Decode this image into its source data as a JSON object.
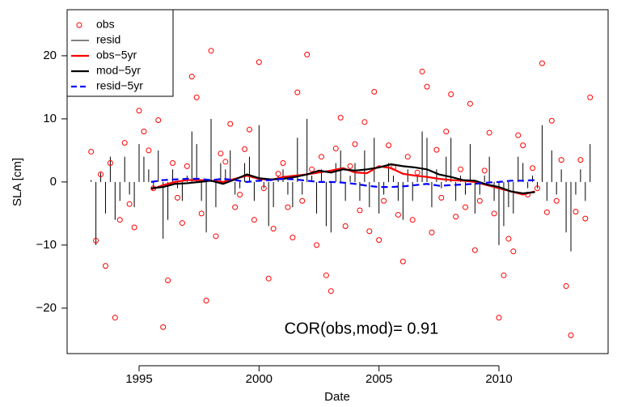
{
  "chart_data": {
    "type": "scatter",
    "xlabel": "Date",
    "ylabel": "SLA [cm]",
    "annotation": "COR(obs,mod)= 0.91",
    "xlim": [
      1992.0,
      2014.55
    ],
    "ylim": [
      -27.2,
      27.3
    ],
    "xticks": [
      1995,
      2000,
      2005,
      2010
    ],
    "yticks": [
      {
        "value": -20,
        "label": "−20"
      },
      {
        "value": -10,
        "label": "−10"
      },
      0,
      10,
      20
    ],
    "legend": "top-left",
    "series": [
      {
        "name": "obs",
        "kind": "points",
        "color": "#ff0000",
        "x": [
          1993.0,
          1993.2,
          1993.4,
          1993.6,
          1993.8,
          1994.0,
          1994.2,
          1994.4,
          1994.6,
          1994.8,
          1995.0,
          1995.2,
          1995.4,
          1995.6,
          1995.8,
          1996.0,
          1996.2,
          1996.4,
          1996.6,
          1996.8,
          1997.0,
          1997.2,
          1997.4,
          1997.6,
          1997.8,
          1998.0,
          1998.2,
          1998.4,
          1998.6,
          1998.8,
          1999.0,
          1999.2,
          1999.4,
          1999.6,
          1999.8,
          2000.0,
          2000.2,
          2000.4,
          2000.6,
          2000.8,
          2001.0,
          2001.2,
          2001.4,
          2001.6,
          2001.8,
          2002.0,
          2002.2,
          2002.4,
          2002.6,
          2002.8,
          2003.0,
          2003.2,
          2003.4,
          2003.6,
          2003.8,
          2004.0,
          2004.2,
          2004.4,
          2004.6,
          2004.8,
          2005.0,
          2005.2,
          2005.4,
          2005.6,
          2005.8,
          2006.0,
          2006.2,
          2006.4,
          2006.6,
          2006.8,
          2007.0,
          2007.2,
          2007.4,
          2007.6,
          2007.8,
          2008.0,
          2008.2,
          2008.4,
          2008.6,
          2008.8,
          2009.0,
          2009.2,
          2009.4,
          2009.6,
          2009.8,
          2010.0,
          2010.2,
          2010.4,
          2010.6,
          2010.8,
          2011.0,
          2011.2,
          2011.4,
          2011.6,
          2011.8,
          2012.0,
          2012.2,
          2012.4,
          2012.6,
          2012.8,
          2013.0,
          2013.2,
          2013.4,
          2013.6,
          2013.8
        ],
        "values": [
          4.8,
          -9.3,
          1.2,
          -13.3,
          3.0,
          -21.5,
          -6.0,
          6.2,
          -3.5,
          -7.2,
          11.3,
          8.0,
          5.0,
          -1.0,
          9.8,
          -23.0,
          -15.6,
          3.0,
          -2.5,
          -6.5,
          2.5,
          16.7,
          13.4,
          -5.0,
          -18.8,
          20.8,
          -8.6,
          4.5,
          3.2,
          9.2,
          -4.0,
          -2.0,
          5.2,
          8.3,
          -6.0,
          19.0,
          -1.0,
          -15.3,
          -7.4,
          1.3,
          3.0,
          -4.0,
          -8.8,
          14.2,
          -3.0,
          20.2,
          2.0,
          -10.0,
          4.0,
          -14.8,
          -17.3,
          5.3,
          10.2,
          -7.0,
          2.5,
          6.0,
          -4.5,
          9.5,
          -7.8,
          14.3,
          -9.2,
          -3.0,
          5.8,
          2.3,
          -5.2,
          -12.6,
          4.0,
          -6.0,
          1.5,
          17.5,
          15.1,
          -8.0,
          5.1,
          -2.5,
          8.0,
          13.9,
          -5.5,
          2.0,
          -4.0,
          12.4,
          -10.8,
          -3.0,
          1.8,
          7.8,
          -5.0,
          -21.5,
          -14.8,
          -9.0,
          -11.0,
          7.4,
          5.8,
          -2.0,
          2.2,
          -1.0,
          18.8,
          -4.8,
          9.7,
          -3.0,
          3.5,
          -16.5,
          -24.3,
          -4.7,
          3.5,
          -5.8,
          13.4
        ]
      },
      {
        "name": "resid",
        "kind": "segments",
        "color": "#000000",
        "x": [
          1993.0,
          1993.2,
          1993.4,
          1993.6,
          1993.8,
          1994.0,
          1994.2,
          1994.4,
          1994.6,
          1994.8,
          1995.0,
          1995.2,
          1995.4,
          1995.6,
          1995.8,
          1996.0,
          1996.2,
          1996.4,
          1996.6,
          1996.8,
          1997.0,
          1997.2,
          1997.4,
          1997.6,
          1997.8,
          1998.0,
          1998.2,
          1998.4,
          1998.6,
          1998.8,
          1999.0,
          1999.2,
          1999.4,
          1999.6,
          1999.8,
          2000.0,
          2000.2,
          2000.4,
          2000.6,
          2000.8,
          2001.0,
          2001.2,
          2001.4,
          2001.6,
          2001.8,
          2002.0,
          2002.2,
          2002.4,
          2002.6,
          2002.8,
          2003.0,
          2003.2,
          2003.4,
          2003.6,
          2003.8,
          2004.0,
          2004.2,
          2004.4,
          2004.6,
          2004.8,
          2005.0,
          2005.2,
          2005.4,
          2005.6,
          2005.8,
          2006.0,
          2006.2,
          2006.4,
          2006.6,
          2006.8,
          2007.0,
          2007.2,
          2007.4,
          2007.6,
          2007.8,
          2008.0,
          2008.2,
          2008.4,
          2008.6,
          2008.8,
          2009.0,
          2009.2,
          2009.4,
          2009.6,
          2009.8,
          2010.0,
          2010.2,
          2010.4,
          2010.6,
          2010.8,
          2011.0,
          2011.2,
          2011.4,
          2011.6,
          2011.8,
          2012.0,
          2012.2,
          2012.4,
          2012.6,
          2012.8,
          2013.0,
          2013.2,
          2013.4,
          2013.6,
          2013.8
        ],
        "values": [
          0.3,
          -10,
          1.5,
          -5,
          4,
          -6,
          -3,
          4,
          -2,
          -4,
          6,
          4,
          2,
          -1,
          5,
          -9,
          -6,
          2,
          -1,
          -3,
          1,
          8,
          6,
          -3,
          -8,
          10,
          -4,
          3,
          2,
          5,
          -2,
          -1,
          3,
          4,
          -3,
          9,
          -1,
          -7,
          -4,
          1,
          2,
          -2,
          -4,
          7,
          -2,
          10,
          1,
          -5,
          2,
          -7,
          -8,
          3,
          5,
          -3,
          1,
          3,
          -3,
          5,
          -4,
          7,
          -5,
          -2,
          3,
          1,
          -3,
          -6,
          2,
          -3,
          1,
          8,
          7,
          -4,
          2,
          -1,
          4,
          7,
          -3,
          1,
          -2,
          6,
          -5,
          -2,
          1,
          4,
          -3,
          -10,
          -7,
          -4,
          -5,
          4,
          3,
          -1,
          1,
          -1,
          9,
          -3,
          5,
          -2,
          2,
          -8,
          -11,
          -2,
          2,
          -3,
          6
        ]
      },
      {
        "name": "obs−5yr",
        "kind": "line",
        "color": "#ff0000",
        "x": [
          1995.5,
          1996.0,
          1996.5,
          1997.0,
          1997.5,
          1998.0,
          1998.5,
          1999.0,
          1999.5,
          2000.0,
          2000.5,
          2001.0,
          2001.5,
          2002.0,
          2002.5,
          2003.0,
          2003.5,
          2004.0,
          2004.5,
          2005.0,
          2005.5,
          2006.0,
          2006.5,
          2007.0,
          2007.5,
          2008.0,
          2008.5,
          2009.0,
          2009.5,
          2010.0,
          2010.5,
          2011.0,
          2011.5
        ],
        "values": [
          -1.2,
          -0.5,
          0,
          0.3,
          0.3,
          0.2,
          0,
          0.5,
          1.0,
          0.5,
          0.3,
          0.8,
          1.0,
          1.2,
          1.5,
          1.8,
          2.2,
          1.5,
          1.4,
          2.5,
          2.2,
          1.3,
          1.0,
          0.8,
          0.5,
          0.3,
          0.2,
          0.0,
          -0.5,
          -1.0,
          -1.5,
          -2.0,
          -1.5
        ]
      },
      {
        "name": "mod−5yr",
        "kind": "line",
        "color": "#000000",
        "x": [
          1995.5,
          1996.0,
          1996.5,
          1997.0,
          1997.5,
          1998.0,
          1998.5,
          1999.0,
          1999.5,
          2000.0,
          2000.5,
          2001.0,
          2001.5,
          2002.0,
          2002.5,
          2003.0,
          2003.5,
          2004.0,
          2004.5,
          2005.0,
          2005.5,
          2006.0,
          2006.5,
          2007.0,
          2007.5,
          2008.0,
          2008.5,
          2009.0,
          2009.5,
          2010.0,
          2010.5,
          2011.0,
          2011.5
        ],
        "values": [
          -1.0,
          -0.8,
          -0.3,
          -0.2,
          0,
          0.2,
          -0.3,
          0.4,
          1.2,
          0.6,
          0.4,
          0.5,
          0.8,
          1.2,
          1.8,
          1.5,
          2.0,
          1.8,
          2.0,
          2.3,
          2.8,
          2.5,
          2.3,
          2.0,
          1.2,
          0.8,
          0.3,
          0.2,
          -0.4,
          -0.8,
          -1.5,
          -1.8,
          -1.6
        ]
      },
      {
        "name": "resid−5yr",
        "kind": "line",
        "dashed": true,
        "color": "#0000ff",
        "x": [
          1995.5,
          1996.0,
          1996.5,
          1997.0,
          1997.5,
          1998.0,
          1998.5,
          1999.0,
          1999.5,
          2000.0,
          2000.5,
          2001.0,
          2001.5,
          2002.0,
          2002.5,
          2003.0,
          2003.5,
          2004.0,
          2004.5,
          2005.0,
          2005.5,
          2006.0,
          2006.5,
          2007.0,
          2007.5,
          2008.0,
          2008.5,
          2009.0,
          2009.5,
          2010.0,
          2010.5,
          2011.0,
          2011.5
        ],
        "values": [
          0,
          0.3,
          0.4,
          0.5,
          0.5,
          0.3,
          0.5,
          0.3,
          0.0,
          0.2,
          0.3,
          0.5,
          0.4,
          0.2,
          0,
          0,
          -0.1,
          -0.3,
          -0.6,
          -0.8,
          -0.8,
          -0.7,
          -0.5,
          -0.3,
          -0.6,
          -0.5,
          -0.4,
          -0.3,
          -0.1,
          0,
          0.2,
          0.2,
          0.3
        ]
      }
    ]
  }
}
